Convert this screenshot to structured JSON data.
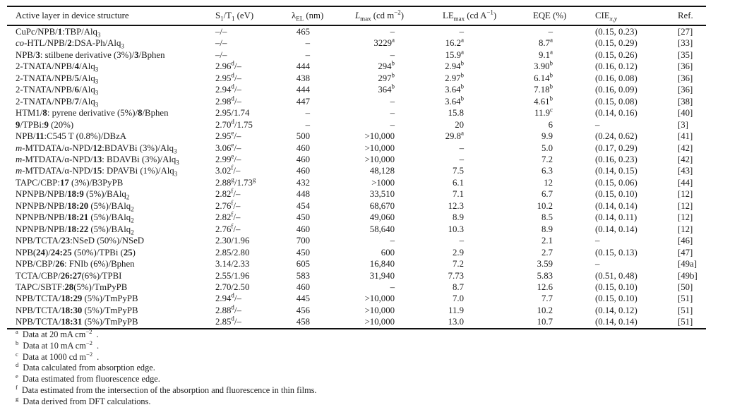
{
  "table": {
    "column_keys": [
      "active-layer",
      "s1-t1",
      "lambda-el",
      "l-max",
      "le-max",
      "eqe",
      "cie",
      "ref"
    ],
    "columns": [
      {
        "key": "active-layer",
        "html": "Active layer in device structure"
      },
      {
        "key": "s1-t1",
        "html": "S<sub>1</sub>/T<sub>1</sub> (eV)"
      },
      {
        "key": "lambda-el",
        "html": "λ<sub>EL</sub> (nm)"
      },
      {
        "key": "l-max",
        "html": "<i>L</i><sub>max</sub> (cd m<sup>−2</sup>)"
      },
      {
        "key": "le-max",
        "html": "LE<sub>max</sub> (cd A<sup>−1</sup>)"
      },
      {
        "key": "eqe",
        "html": "EQE (%)"
      },
      {
        "key": "cie",
        "html": "CIE<sub><i>x,y</i></sub>"
      },
      {
        "key": "ref",
        "html": "Ref."
      }
    ],
    "rows": [
      [
        "CuPc/NPB/<b>1</b>:TBP/Alq<sub>3</sub>",
        "–/–",
        "465",
        "–",
        "–",
        "–",
        "(0.15, 0.23)",
        "[27]"
      ],
      [
        "<i>co</i>-HTL/NPB/<b>2</b>:DSA-Ph/Alq<sub>3</sub>",
        "–/–",
        "–",
        "3229<sup>a</sup>",
        "16.2<sup>a</sup>",
        "8.7<sup>a</sup>",
        "(0.15, 0.29)",
        "[33]"
      ],
      [
        "NPB/<b>3</b>: stilbene derivative (3%)/<b>3</b>/Bphen",
        "–/–",
        "–",
        "–",
        "15.9<sup>a</sup>",
        "9.1<sup>a</sup>",
        "(0.15, 0.26)",
        "[35]"
      ],
      [
        "2-TNATA/NPB/<b>4</b>/Alq<sub>3</sub>",
        "2.96<sup>d</sup>/–",
        "444",
        "294<sup>b</sup>",
        "2.94<sup>b</sup>",
        "3.90<sup>b</sup>",
        "(0.16, 0.12)",
        "[36]"
      ],
      [
        "2-TNATA/NPB/<b>5</b>/Alq<sub>3</sub>",
        "2.95<sup>d</sup>/–",
        "438",
        "297<sup>b</sup>",
        "2.97<sup>b</sup>",
        "6.14<sup>b</sup>",
        "(0.16, 0.08)",
        "[36]"
      ],
      [
        "2-TNATA/NPB/<b>6</b>/Alq<sub>3</sub>",
        "2.94<sup>d</sup>/–",
        "444",
        "364<sup>b</sup>",
        "3.64<sup>b</sup>",
        "7.18<sup>b</sup>",
        "(0.16, 0.09)",
        "[36]"
      ],
      [
        "2-TNATA/NPB/<b>7</b>/Alq<sub>3</sub>",
        "2.98<sup>d</sup>/–",
        "447",
        "–",
        "3.64<sup>b</sup>",
        "4.61<sup>b</sup>",
        "(0.15, 0.08)",
        "[38]"
      ],
      [
        "HTM1/<b>8</b>: pyrene derivative (5%)/<b>8</b>/Bphen",
        "2.95/1.74",
        "–",
        "–",
        "15.8",
        "11.9<sup>c</sup>",
        "(0.14, 0.16)",
        "[40]"
      ],
      [
        "<b>9</b>/TPBi:<b>9</b> (20%)",
        "2.70<sup>d</sup>/1.75",
        "–",
        "–",
        "20",
        "6",
        "–",
        "[3]"
      ],
      [
        "NPB/<b>11</b>:C545 T (0.8%)/DBzA",
        "2.95<sup>e</sup>/–",
        "500",
        "&gt;10,000",
        "29.8<sup>a</sup>",
        "9.9",
        "(0.24, 0.62)",
        "[41]"
      ],
      [
        "<i>m</i>-MTDATA/α-NPD/<b>12</b>:BDAVBi (3%)/Alq<sub>3</sub>",
        "3.06<sup>e</sup>/–",
        "460",
        "&gt;10,000",
        "–",
        "5.0",
        "(0.17, 0.29)",
        "[42]"
      ],
      [
        "<i>m</i>-MTDATA/α-NPD/<b>13</b>: BDAVBi (3%)/Alq<sub>3</sub>",
        "2.99<sup>e</sup>/–",
        "460",
        "&gt;10,000",
        "–",
        "7.2",
        "(0.16, 0.23)",
        "[42]"
      ],
      [
        "<i>m</i>-MTDATA/α-NPD/<b>15</b>: DPAVBi (1%)/Alq<sub>3</sub>",
        "3.02<sup>f</sup>/–",
        "460",
        "48,128",
        "7.5",
        "6.3",
        "(0.14, 0.15)",
        "[43]"
      ],
      [
        "TAPC/CBP:<b>17</b> (3%)/B3PyPB",
        "2.88<sup>g</sup>/1.73<sup>g</sup>",
        "432",
        "&gt;1000",
        "6.1",
        "12",
        "(0.15, 0.06)",
        "[44]"
      ],
      [
        "NPNPB/NPB/<b>18:9</b> (5%)/BAlq<sub>2</sub>",
        "2.82<sup>f</sup>/–",
        "448",
        "33,510",
        "7.1",
        "6.7",
        "(0.15, 0.10)",
        "[12]"
      ],
      [
        "NPNPB/NPB/<b>18:20</b> (5%)/BAlq<sub>2</sub>",
        "2.76<sup>f</sup>/–",
        "454",
        "68,670",
        "12.3",
        "10.2",
        "(0.14, 0.14)",
        "[12]"
      ],
      [
        "NPNPB/NPB/<b>18:21</b> (5%)/BAlq<sub>2</sub>",
        "2.82<sup>f</sup>/–",
        "450",
        "49,060",
        "8.9",
        "8.5",
        "(0.14, 0.11)",
        "[12]"
      ],
      [
        "NPNPB/NPB/<b>18:22</b> (5%)/BAlq<sub>2</sub>",
        "2.76<sup>f</sup>/–",
        "460",
        "58,640",
        "10.3",
        "8.9",
        "(0.14, 0.14)",
        "[12]"
      ],
      [
        "NPB/TCTA/<b>23</b>:NSeD (50%)/NSeD",
        "2.30/1.96",
        "700",
        "–",
        "–",
        "2.1",
        "–",
        "[46]"
      ],
      [
        "NPB(<b>24</b>)/<b>24:25</b> (50%)/TPBi (<b>25</b>)",
        "2.85/2.80",
        "450",
        "600",
        "2.9",
        "2.7",
        "(0.15, 0.13)",
        "[47]"
      ],
      [
        "NPB/CBP/<b>26</b>: FNIb (6%)/Bphen",
        "3.14/2.33",
        "605",
        "16,840",
        "7.2",
        "3.59",
        "–",
        "[49a]"
      ],
      [
        "TCTA/CBP/<b>26:27</b>(6%)/TPBI",
        "2.55/1.96",
        "583",
        "31,940",
        "7.73",
        "5.83",
        "(0.51, 0.48)",
        "[49b]"
      ],
      [
        "TAPC/SBTF:<b>28</b>(5%)/TmPyPB",
        "2.70/2.50",
        "460",
        "–",
        "8.7",
        "12.6",
        "(0.15, 0.10)",
        "[50]"
      ],
      [
        "NPB/TCTA/<b>18:29</b> (5%)/TmPyPB",
        "2.94<sup>d</sup>/–",
        "445",
        "&gt;10,000",
        "7.0",
        "7.7",
        "(0.15, 0.10)",
        "[51]"
      ],
      [
        "NPB/TCTA/<b>18:30</b> (5%)/TmPyPB",
        "2.88<sup>d</sup>/–",
        "456",
        "&gt;10,000",
        "11.9",
        "10.2",
        "(0.14, 0.12)",
        "[51]"
      ],
      [
        "NPB/TCTA/<b>18:31</b> (5%)/TmPyPB",
        "2.85<sup>d</sup>/–",
        "458",
        "&gt;10,000",
        "13.0",
        "10.7",
        "(0.14, 0.14)",
        "[51]"
      ]
    ],
    "footnotes": [
      {
        "marker": "a",
        "html": "Data at 20 mA cm<sup>−2</sup>."
      },
      {
        "marker": "b",
        "html": "Data at 10 mA cm<sup>−2</sup>."
      },
      {
        "marker": "c",
        "html": "Data at 1000 cd m<sup>−2</sup>."
      },
      {
        "marker": "d",
        "html": "Data calculated from absorption edge."
      },
      {
        "marker": "e",
        "html": "Data estimated from fluorescence edge."
      },
      {
        "marker": "f",
        "html": "Data estimated from the intersection of the absorption and fluorescence in thin films."
      },
      {
        "marker": "g",
        "html": "Data derived from DFT calculations."
      }
    ],
    "colors": {
      "text": "#1b1b1b",
      "rule": "#111111",
      "background": "#ffffff"
    }
  }
}
